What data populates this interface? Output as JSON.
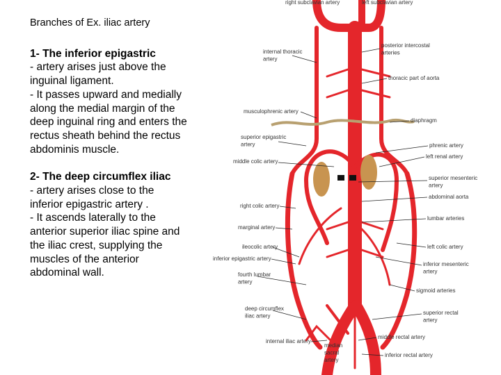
{
  "text": {
    "title": "Branches of Ex. iliac artery",
    "sections": [
      {
        "heading": "1-  The inferior epigastric",
        "paragraphs": [
          " - artery arises just above the inguinal ligament.",
          "- It passes upward and medially along the medial margin of the deep inguinal ring and enters the rectus sheath behind the rectus abdominis muscle."
        ]
      },
      {
        "heading": "2-  The deep circumflex iliac",
        "paragraphs": [
          " - artery arises close to the inferior epigastric artery .",
          "-  It ascends laterally to the anterior superior iliac spine and the iliac crest, supplying the muscles of the anterior abdominal wall."
        ]
      }
    ]
  },
  "diagram": {
    "labels": [
      {
        "lines": [
          "right subclavian artery"
        ]
      },
      {
        "lines": [
          "left subclavian artery"
        ]
      },
      {
        "lines": [
          "internal thoracic",
          "artery"
        ]
      },
      {
        "lines": [
          "musculophrenic artery"
        ]
      },
      {
        "lines": [
          "superior epigastric",
          "artery"
        ]
      },
      {
        "lines": [
          "middle colic artery"
        ]
      },
      {
        "lines": [
          "right colic artery"
        ]
      },
      {
        "lines": [
          "marginal artery"
        ]
      },
      {
        "lines": [
          "ileocolic artery"
        ]
      },
      {
        "lines": [
          "inferior epigastric artery"
        ]
      },
      {
        "lines": [
          "fourth lumbar",
          "artery"
        ]
      },
      {
        "lines": [
          "deep circumflex",
          "iliac artery"
        ]
      },
      {
        "lines": [
          "internal iliac artery"
        ]
      },
      {
        "lines": [
          "median",
          "sacral",
          "artery"
        ]
      },
      {
        "lines": [
          "posterior intercostal",
          "arteries"
        ]
      },
      {
        "lines": [
          "thoracic part of aorta"
        ]
      },
      {
        "lines": [
          "diaphragm"
        ]
      },
      {
        "lines": [
          "phrenic artery"
        ]
      },
      {
        "lines": [
          "left renal artery"
        ]
      },
      {
        "lines": [
          "superior mesenteric",
          "artery"
        ]
      },
      {
        "lines": [
          "abdominal aorta"
        ]
      },
      {
        "lines": [
          "lumbar arteries"
        ]
      },
      {
        "lines": [
          "left colic artery"
        ]
      },
      {
        "lines": [
          "inferior mesenteric",
          "artery"
        ]
      },
      {
        "lines": [
          "sigmoid arteries"
        ]
      },
      {
        "lines": [
          "superior rectal",
          "artery"
        ]
      },
      {
        "lines": [
          "middle rectal artery"
        ]
      },
      {
        "lines": [
          "inferior rectal artery"
        ]
      }
    ]
  }
}
